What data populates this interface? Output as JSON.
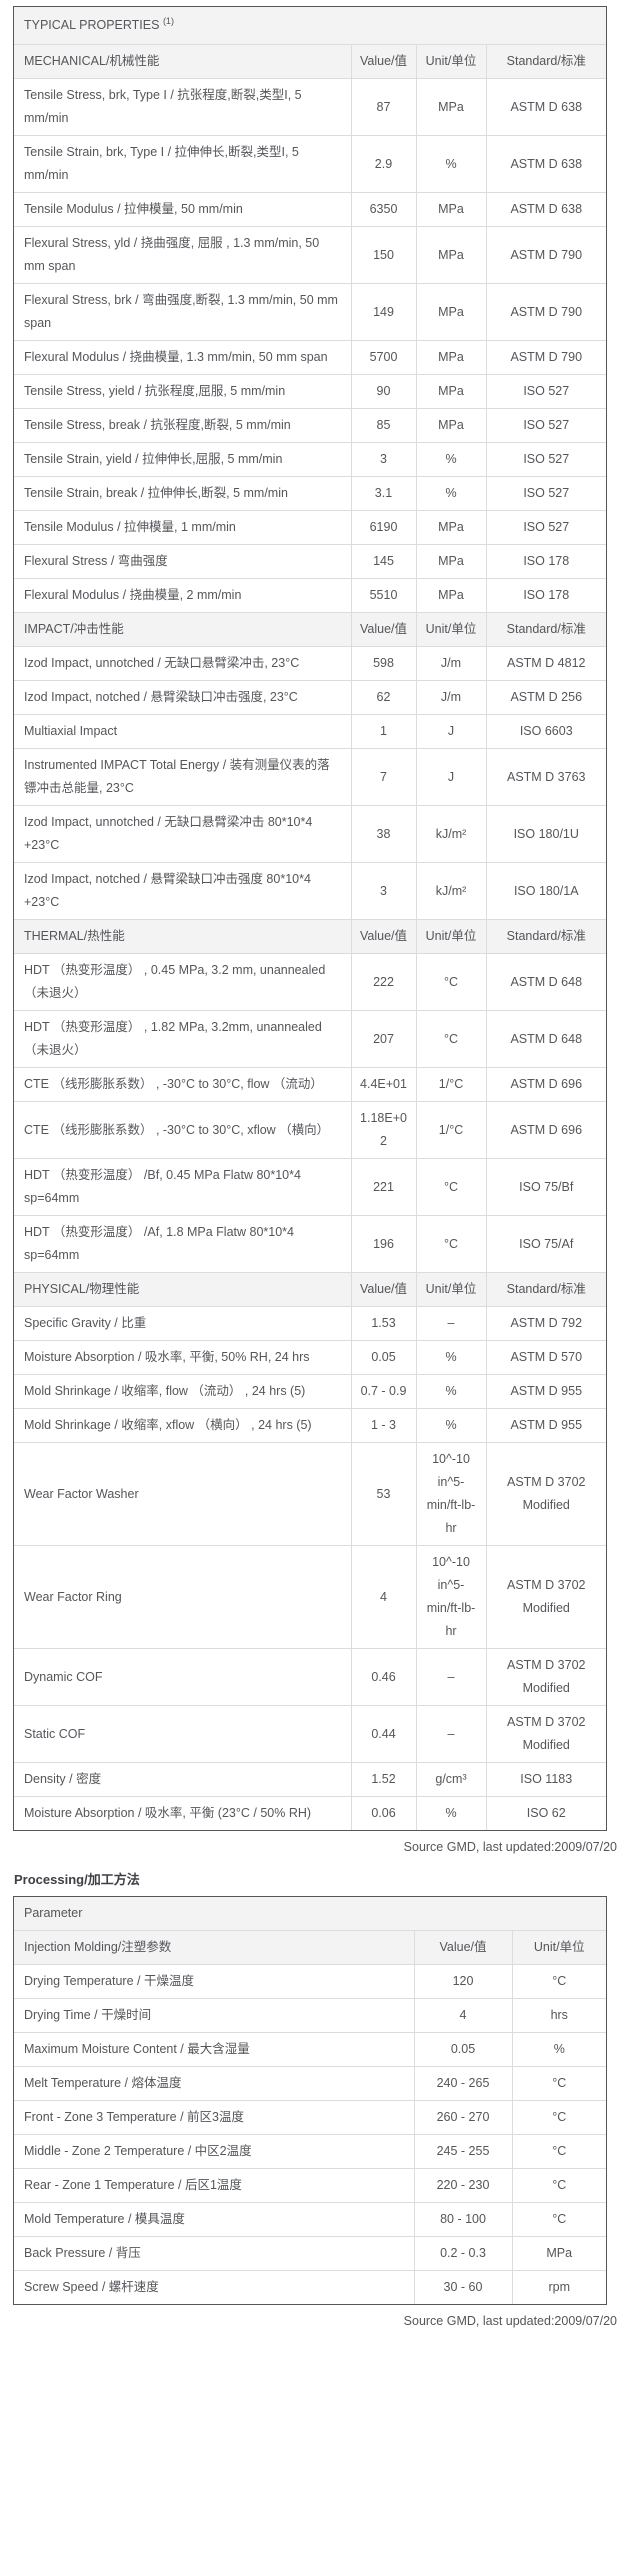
{
  "page": {
    "source_note": "Source GMD, last updated:2009/07/20"
  },
  "colors": {
    "text": "#54565b",
    "header_bg": "#f3f3f3",
    "border_dark": "#55565a",
    "border_light": "#dcdcdc"
  },
  "typical_properties": {
    "title": "TYPICAL PROPERTIES",
    "title_note": "(1)",
    "columns": {
      "value": "Value/值",
      "unit": "Unit/单位",
      "standard": "Standard/标准"
    },
    "sections": [
      {
        "name": "MECHANICAL/机械性能",
        "rows": [
          {
            "property": "Tensile Stress, brk, Type I / 抗张程度,断裂,类型I, 5 mm/min",
            "value": "87",
            "unit": "MPa",
            "standard": "ASTM D 638"
          },
          {
            "property": "Tensile Strain, brk, Type I / 拉伸伸长,断裂,类型I, 5 mm/min",
            "value": "2.9",
            "unit": "%",
            "standard": "ASTM D 638"
          },
          {
            "property": "Tensile Modulus / 拉伸模量, 50 mm/min",
            "value": "6350",
            "unit": "MPa",
            "standard": "ASTM D 638"
          },
          {
            "property": "Flexural Stress, yld / 挠曲强度, 屈服 , 1.3 mm/min, 50 mm span",
            "value": "150",
            "unit": "MPa",
            "standard": "ASTM D 790"
          },
          {
            "property": "Flexural Stress, brk / 弯曲强度,断裂, 1.3 mm/min, 50 mm span",
            "value": "149",
            "unit": "MPa",
            "standard": "ASTM D 790"
          },
          {
            "property": "Flexural Modulus / 挠曲模量, 1.3 mm/min, 50 mm span",
            "value": "5700",
            "unit": "MPa",
            "standard": "ASTM D 790"
          },
          {
            "property": "Tensile Stress, yield / 抗张程度,屈服, 5 mm/min",
            "value": "90",
            "unit": "MPa",
            "standard": "ISO 527"
          },
          {
            "property": "Tensile Stress, break / 抗张程度,断裂, 5 mm/min",
            "value": "85",
            "unit": "MPa",
            "standard": "ISO 527"
          },
          {
            "property": "Tensile Strain, yield / 拉伸伸长,屈服, 5 mm/min",
            "value": "3",
            "unit": "%",
            "standard": "ISO 527"
          },
          {
            "property": "Tensile Strain, break / 拉伸伸长,断裂, 5 mm/min",
            "value": "3.1",
            "unit": "%",
            "standard": "ISO 527"
          },
          {
            "property": "Tensile Modulus / 拉伸模量, 1 mm/min",
            "value": "6190",
            "unit": "MPa",
            "standard": "ISO 527"
          },
          {
            "property": "Flexural Stress / 弯曲强度",
            "value": "145",
            "unit": "MPa",
            "standard": "ISO 178"
          },
          {
            "property": "Flexural Modulus / 挠曲模量, 2 mm/min",
            "value": "5510",
            "unit": "MPa",
            "standard": "ISO 178"
          }
        ]
      },
      {
        "name": "IMPACT/冲击性能",
        "rows": [
          {
            "property": "Izod Impact, unnotched / 无缺口悬臂梁冲击, 23°C",
            "value": "598",
            "unit": "J/m",
            "standard": "ASTM D 4812"
          },
          {
            "property": "Izod Impact, notched / 悬臂梁缺口冲击强度, 23°C",
            "value": "62",
            "unit": "J/m",
            "standard": "ASTM D 256"
          },
          {
            "property": "Multiaxial Impact",
            "value": "1",
            "unit": "J",
            "standard": "ISO 6603"
          },
          {
            "property": "Instrumented IMPACT Total Energy / 装有测量仪表的落镖冲击总能量, 23°C",
            "value": "7",
            "unit": "J",
            "standard": "ASTM D 3763"
          },
          {
            "property": "Izod Impact, unnotched / 无缺口悬臂梁冲击 80*10*4 +23°C",
            "value": "38",
            "unit": "kJ/m²",
            "standard": "ISO 180/1U"
          },
          {
            "property": "Izod Impact, notched / 悬臂梁缺口冲击强度 80*10*4 +23°C",
            "value": "3",
            "unit": "kJ/m²",
            "standard": "ISO 180/1A"
          }
        ]
      },
      {
        "name": "THERMAL/热性能",
        "rows": [
          {
            "property": "HDT （热变形温度） , 0.45 MPa, 3.2 mm, unannealed （未退火）",
            "value": "222",
            "unit": "°C",
            "standard": "ASTM D 648"
          },
          {
            "property": "HDT （热变形温度） , 1.82 MPa, 3.2mm, unannealed （未退火）",
            "value": "207",
            "unit": "°C",
            "standard": "ASTM D 648"
          },
          {
            "property": "CTE （线形膨胀系数） , -30°C to 30°C, flow （流动）",
            "value": "4.4E+01",
            "unit": "1/°C",
            "standard": "ASTM D 696"
          },
          {
            "property": "CTE （线形膨胀系数） , -30°C to 30°C, xflow （横向）",
            "value": "1.18E+02",
            "unit": "1/°C",
            "standard": "ASTM D 696"
          },
          {
            "property": "HDT （热变形温度） /Bf, 0.45 MPa Flatw 80*10*4 sp=64mm",
            "value": "221",
            "unit": "°C",
            "standard": "ISO 75/Bf"
          },
          {
            "property": "HDT （热变形温度） /Af, 1.8 MPa Flatw 80*10*4 sp=64mm",
            "value": "196",
            "unit": "°C",
            "standard": "ISO 75/Af"
          }
        ]
      },
      {
        "name": "PHYSICAL/物理性能",
        "rows": [
          {
            "property": "Specific Gravity / 比重",
            "value": "1.53",
            "unit": "–",
            "standard": "ASTM D 792"
          },
          {
            "property": "Moisture Absorption / 吸水率, 平衡, 50% RH, 24 hrs",
            "value": "0.05",
            "unit": "%",
            "standard": "ASTM D 570"
          },
          {
            "property": "Mold Shrinkage / 收缩率, flow （流动） , 24 hrs (5)",
            "value": "0.7 - 0.9",
            "unit": "%",
            "standard": "ASTM D 955"
          },
          {
            "property": "Mold Shrinkage / 收缩率, xflow （横向） , 24 hrs (5)",
            "value": "1 - 3",
            "unit": "%",
            "standard": "ASTM D 955"
          },
          {
            "property": "Wear Factor Washer",
            "value": "53",
            "unit": "10^-10 in^5-min/ft-lb-hr",
            "standard": "ASTM D 3702 Modified"
          },
          {
            "property": "Wear Factor Ring",
            "value": "4",
            "unit": "10^-10 in^5-min/ft-lb-hr",
            "standard": "ASTM D 3702 Modified"
          },
          {
            "property": "Dynamic COF",
            "value": "0.46",
            "unit": "–",
            "standard": "ASTM D 3702 Modified"
          },
          {
            "property": "Static COF",
            "value": "0.44",
            "unit": "–",
            "standard": "ASTM D 3702 Modified"
          },
          {
            "property": "Density / 密度",
            "value": "1.52",
            "unit": "g/cm³",
            "standard": "ISO 1183"
          },
          {
            "property": "Moisture Absorption / 吸水率, 平衡 (23°C / 50% RH)",
            "value": "0.06",
            "unit": "%",
            "standard": "ISO 62"
          }
        ]
      }
    ]
  },
  "processing": {
    "title": "Processing/加工方法",
    "param_header": "Parameter",
    "group_header": "Injection Molding/注塑参数",
    "columns": {
      "value": "Value/值",
      "unit": "Unit/单位"
    },
    "rows": [
      {
        "property": "Drying Temperature / 干燥温度",
        "value": "120",
        "unit": "°C"
      },
      {
        "property": "Drying Time / 干燥时间",
        "value": "4",
        "unit": "hrs"
      },
      {
        "property": "Maximum Moisture Content / 最大含湿量",
        "value": "0.05",
        "unit": "%"
      },
      {
        "property": "Melt Temperature / 熔体温度",
        "value": "240 - 265",
        "unit": "°C"
      },
      {
        "property": "Front - Zone 3 Temperature / 前区3温度",
        "value": "260 - 270",
        "unit": "°C"
      },
      {
        "property": "Middle - Zone 2 Temperature / 中区2温度",
        "value": "245 - 255",
        "unit": "°C"
      },
      {
        "property": "Rear - Zone 1 Temperature / 后区1温度",
        "value": "220 - 230",
        "unit": "°C"
      },
      {
        "property": "Mold Temperature / 模具温度",
        "value": "80 - 100",
        "unit": "°C"
      },
      {
        "property": "Back Pressure / 背压",
        "value": "0.2 - 0.3",
        "unit": "MPa"
      },
      {
        "property": "Screw Speed / 螺杆速度",
        "value": "30 - 60",
        "unit": "rpm"
      }
    ]
  }
}
